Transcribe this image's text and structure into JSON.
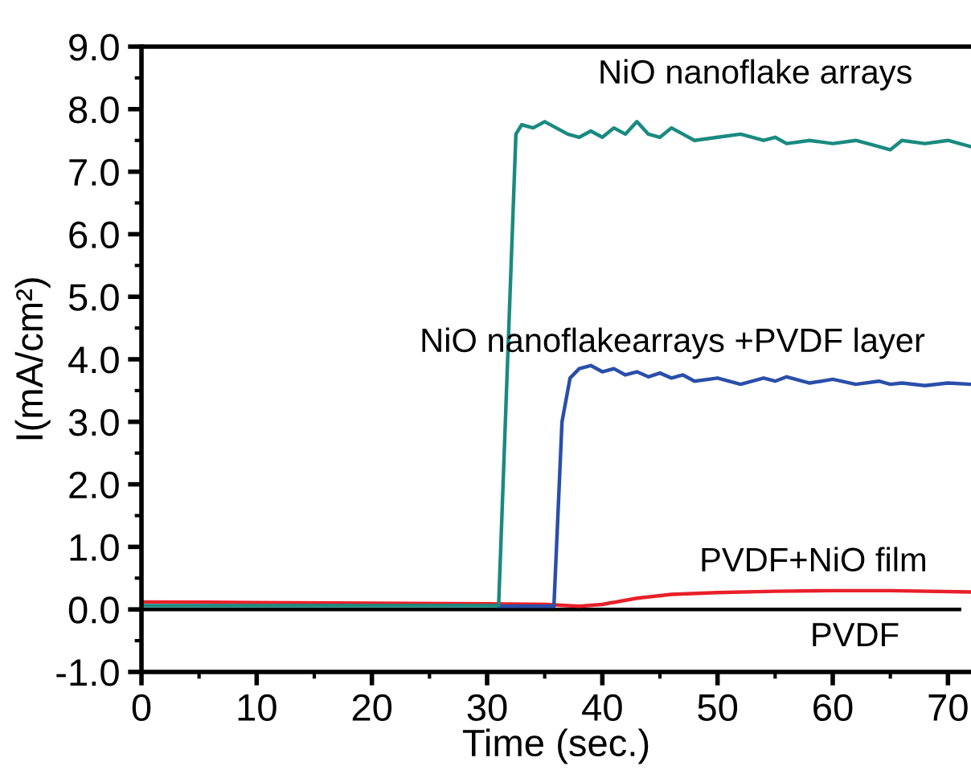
{
  "chart_data": {
    "type": "line",
    "xlabel": "Time (sec.)",
    "ylabel": "I(mA/cm²)",
    "xlim": [
      0,
      72
    ],
    "ylim": [
      -1,
      9
    ],
    "xticks": [
      0,
      {
        "value": 5,
        "label": null
      },
      10,
      {
        "value": 15,
        "label": null
      },
      20,
      {
        "value": 25,
        "label": null
      },
      30,
      {
        "value": 35,
        "label": null
      },
      40,
      {
        "value": 45,
        "label": null
      },
      50,
      {
        "value": 55,
        "label": null
      },
      60,
      {
        "value": 65,
        "label": null
      },
      70
    ],
    "yticks": [
      {
        "value": -1,
        "label": "-1.0"
      },
      {
        "value": -0.5,
        "label": null
      },
      {
        "value": 0,
        "label": "0.0"
      },
      {
        "value": 0.5,
        "label": null
      },
      {
        "value": 1,
        "label": "1.0"
      },
      {
        "value": 1.5,
        "label": null
      },
      {
        "value": 2,
        "label": "2.0"
      },
      {
        "value": 2.5,
        "label": null
      },
      {
        "value": 3,
        "label": "3.0"
      },
      {
        "value": 3.5,
        "label": null
      },
      {
        "value": 4,
        "label": "4.0"
      },
      {
        "value": 4.5,
        "label": null
      },
      {
        "value": 5,
        "label": "5.0"
      },
      {
        "value": 5.5,
        "label": null
      },
      {
        "value": 6,
        "label": "6.0"
      },
      {
        "value": 6.5,
        "label": null
      },
      {
        "value": 7,
        "label": "7.0"
      },
      {
        "value": 7.5,
        "label": null
      },
      {
        "value": 8,
        "label": "8.0"
      },
      {
        "value": 8.5,
        "label": null
      },
      {
        "value": 9,
        "label": "9.0"
      }
    ],
    "grid": false,
    "legend": false,
    "marker": "none",
    "line_style": "solid",
    "series": [
      {
        "name": "PVDF",
        "color": "#000000",
        "x": [
          0,
          71
        ],
        "values": [
          0,
          0
        ]
      },
      {
        "name": "PVDF+NiO film",
        "color": "#e8202a",
        "x": [
          0,
          10,
          20,
          30,
          35,
          38,
          40,
          43,
          46,
          50,
          55,
          60,
          65,
          72
        ],
        "values": [
          0.12,
          0.11,
          0.1,
          0.09,
          0.08,
          0.05,
          0.08,
          0.18,
          0.24,
          0.27,
          0.29,
          0.3,
          0.3,
          0.28
        ]
      },
      {
        "name": "NiO nanoflakearrays +PVDF layer",
        "color": "#2a4faa",
        "x": [
          31,
          35.8,
          36.5,
          37.2,
          38,
          39,
          40,
          41,
          42,
          43,
          44,
          45,
          46,
          47,
          48,
          50,
          52,
          54,
          55,
          56,
          58,
          60,
          62,
          64,
          65,
          66,
          68,
          70,
          72
        ],
        "values": [
          0.05,
          0.05,
          3.0,
          3.7,
          3.85,
          3.9,
          3.8,
          3.85,
          3.75,
          3.8,
          3.72,
          3.78,
          3.7,
          3.75,
          3.65,
          3.7,
          3.6,
          3.7,
          3.65,
          3.72,
          3.62,
          3.68,
          3.6,
          3.65,
          3.6,
          3.62,
          3.58,
          3.62,
          3.6
        ]
      },
      {
        "name": "NiO nanoflake arrays",
        "color": "#1a8a80",
        "x": [
          0,
          10,
          20,
          31,
          32.5,
          33,
          34,
          35,
          36,
          37,
          38,
          39,
          40,
          41,
          42,
          43,
          44,
          45,
          46,
          47,
          48,
          50,
          52,
          54,
          55,
          56,
          58,
          60,
          62,
          64,
          65,
          66,
          68,
          70,
          72
        ],
        "values": [
          0.06,
          0.06,
          0.06,
          0.06,
          7.6,
          7.75,
          7.7,
          7.8,
          7.7,
          7.6,
          7.55,
          7.65,
          7.55,
          7.7,
          7.6,
          7.8,
          7.6,
          7.55,
          7.7,
          7.6,
          7.5,
          7.55,
          7.6,
          7.5,
          7.55,
          7.45,
          7.5,
          7.45,
          7.5,
          7.4,
          7.35,
          7.5,
          7.45,
          7.5,
          7.4
        ]
      }
    ]
  }
}
